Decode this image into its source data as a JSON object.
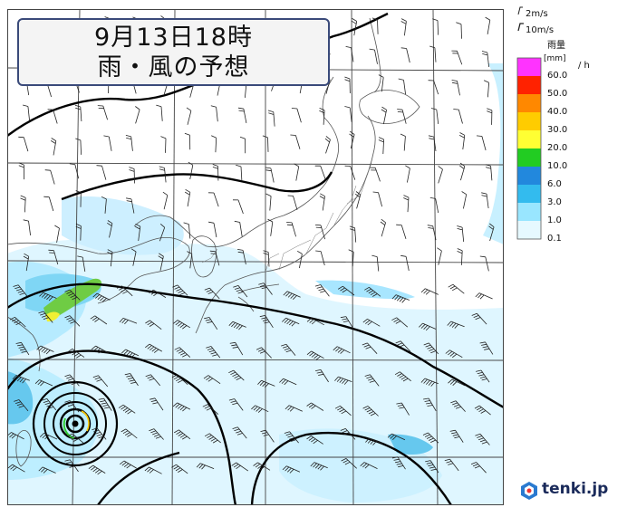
{
  "title": {
    "line1": "9月13日18時",
    "line2": "雨・風の予想"
  },
  "wind_legend": {
    "barb_small": "2m/s",
    "barb_large": "10m/s"
  },
  "rain_scale": {
    "title": "雨量",
    "unit": "[mm]",
    "per": "/ h",
    "levels": [
      {
        "label": "60.0",
        "color": "#ff33ff"
      },
      {
        "label": "50.0",
        "color": "#ff2200"
      },
      {
        "label": "40.0",
        "color": "#ff8800"
      },
      {
        "label": "30.0",
        "color": "#ffcc00"
      },
      {
        "label": "20.0",
        "color": "#ffff33"
      },
      {
        "label": "10.0",
        "color": "#22cc22"
      },
      {
        "label": "6.0",
        "color": "#2288dd"
      },
      {
        "label": "3.0",
        "color": "#33bbee"
      },
      {
        "label": "1.0",
        "color": "#99e6ff"
      },
      {
        "label": "0.1",
        "color": "#e6f9ff"
      }
    ]
  },
  "logo": {
    "text": "tenki.jp",
    "icon": "tenki-logo-icon",
    "color": "#2a7ad0"
  }
}
